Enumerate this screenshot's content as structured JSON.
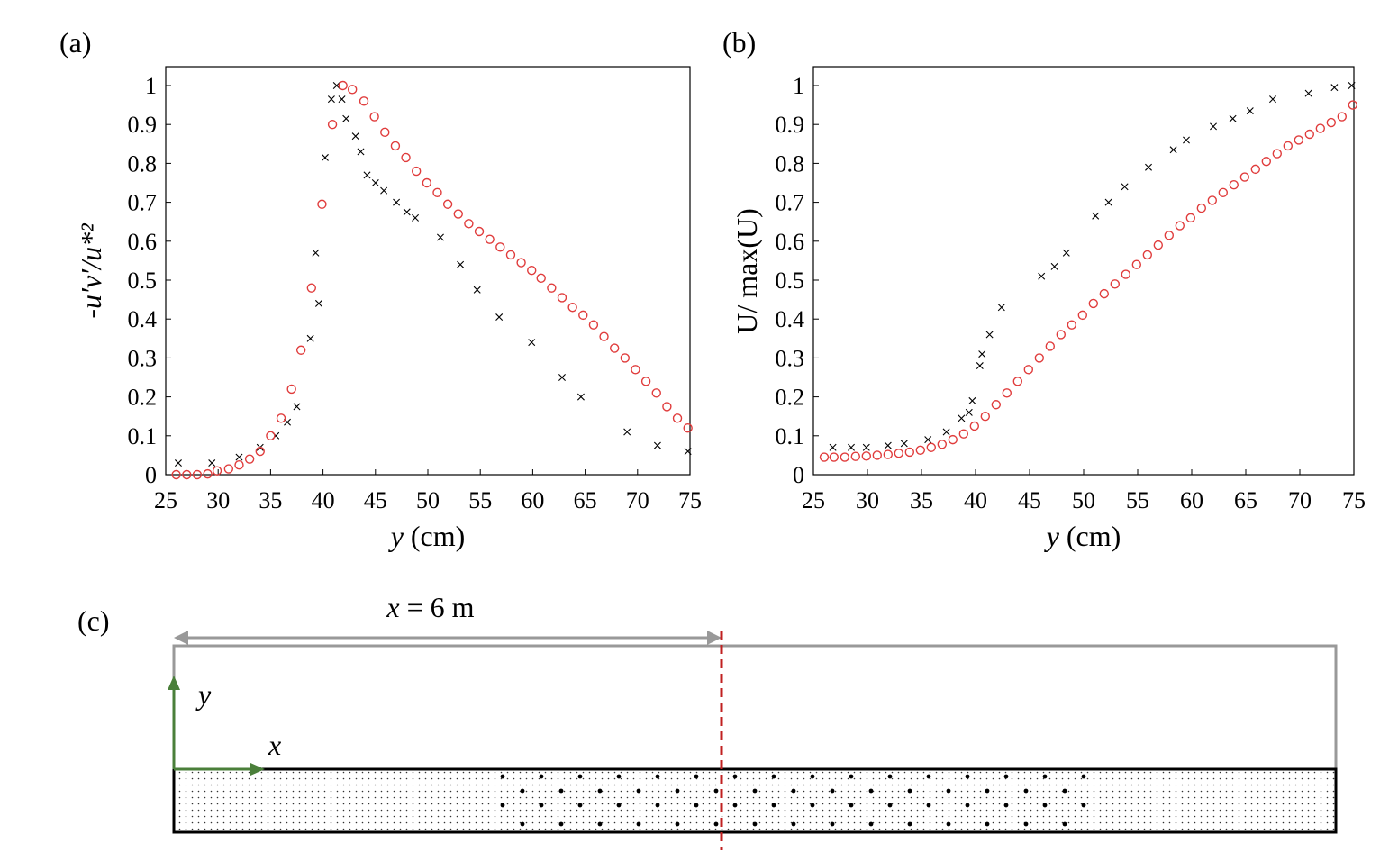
{
  "figure": {
    "panel_a_label": "(a)",
    "panel_b_label": "(b)",
    "panel_c_label": "(c)"
  },
  "chart_data": [
    {
      "type": "scatter",
      "panel": "(a)",
      "xlabel_var": "y",
      "xlabel_unit": "(cm)",
      "ylabel": "-u′v′/u*²",
      "xlim": [
        25,
        75
      ],
      "ylim": [
        0,
        1
      ],
      "xticks": [
        "25",
        "30",
        "35",
        "40",
        "45",
        "50",
        "55",
        "60",
        "65",
        "70",
        "75"
      ],
      "xtick_values": [
        25,
        30,
        35,
        40,
        45,
        50,
        55,
        60,
        65,
        70,
        75
      ],
      "yticks": [
        "0",
        "0.1",
        "0.2",
        "0.3",
        "0.4",
        "0.5",
        "0.6",
        "0.7",
        "0.8",
        "0.9",
        "1"
      ],
      "ytick_values": [
        0,
        0.1,
        0.2,
        0.3,
        0.4,
        0.5,
        0.6,
        0.7,
        0.8,
        0.9,
        1
      ],
      "series": [
        {
          "name": "cross",
          "marker": "x",
          "color": "#000000",
          "x": [
            26.2,
            29.4,
            32.0,
            34.0,
            35.5,
            36.6,
            37.5,
            38.8,
            39.3,
            39.6,
            40.2,
            40.8,
            41.3,
            41.8,
            42.2,
            43.1,
            43.6,
            44.2,
            45.0,
            45.8,
            47.0,
            48.0,
            48.8,
            51.2,
            53.1,
            54.7,
            56.8,
            59.9,
            62.8,
            64.6,
            69.0,
            71.9,
            74.8
          ],
          "y": [
            0.03,
            0.03,
            0.045,
            0.07,
            0.1,
            0.135,
            0.175,
            0.35,
            0.57,
            0.44,
            0.815,
            0.965,
            1.0,
            0.965,
            0.915,
            0.87,
            0.83,
            0.77,
            0.75,
            0.73,
            0.7,
            0.675,
            0.66,
            0.61,
            0.54,
            0.475,
            0.405,
            0.34,
            0.25,
            0.2,
            0.11,
            0.075,
            0.06
          ]
        },
        {
          "name": "circle",
          "marker": "o",
          "color": "#e03c3c",
          "x": [
            26.0,
            27.0,
            28.0,
            29.0,
            29.9,
            31.0,
            32.0,
            33.0,
            34.0,
            35.0,
            36.0,
            37.0,
            37.9,
            38.9,
            39.9,
            40.9,
            41.9,
            42.8,
            43.9,
            44.9,
            45.9,
            46.9,
            47.9,
            48.9,
            49.9,
            50.9,
            51.9,
            52.9,
            53.9,
            54.9,
            55.9,
            56.9,
            57.9,
            58.9,
            59.9,
            60.8,
            61.8,
            62.8,
            63.8,
            64.8,
            65.8,
            66.8,
            67.8,
            68.8,
            69.8,
            70.8,
            71.8,
            72.8,
            73.8,
            74.8
          ],
          "y": [
            0.0,
            0.0,
            0.0,
            0.002,
            0.01,
            0.015,
            0.025,
            0.04,
            0.06,
            0.1,
            0.145,
            0.22,
            0.32,
            0.48,
            0.695,
            0.9,
            1.0,
            0.99,
            0.96,
            0.92,
            0.88,
            0.845,
            0.815,
            0.78,
            0.75,
            0.725,
            0.695,
            0.67,
            0.645,
            0.625,
            0.605,
            0.585,
            0.565,
            0.545,
            0.525,
            0.505,
            0.48,
            0.455,
            0.43,
            0.41,
            0.385,
            0.355,
            0.325,
            0.3,
            0.27,
            0.24,
            0.21,
            0.175,
            0.145,
            0.12
          ]
        }
      ]
    },
    {
      "type": "scatter",
      "panel": "(b)",
      "xlabel_var": "y",
      "xlabel_unit": "(cm)",
      "ylabel": "U/ max(U)",
      "xlim": [
        25,
        75
      ],
      "ylim": [
        0,
        1
      ],
      "xticks": [
        "25",
        "30",
        "35",
        "40",
        "45",
        "50",
        "55",
        "60",
        "65",
        "70",
        "75"
      ],
      "xtick_values": [
        25,
        30,
        35,
        40,
        45,
        50,
        55,
        60,
        65,
        70,
        75
      ],
      "yticks": [
        "0",
        "0.1",
        "0.2",
        "0.3",
        "0.4",
        "0.5",
        "0.6",
        "0.7",
        "0.8",
        "0.9",
        "1"
      ],
      "ytick_values": [
        0,
        0.1,
        0.2,
        0.3,
        0.4,
        0.5,
        0.6,
        0.7,
        0.8,
        0.9,
        1
      ],
      "series": [
        {
          "name": "cross",
          "marker": "x",
          "color": "#000000",
          "x": [
            26.8,
            28.5,
            29.9,
            31.9,
            33.4,
            35.6,
            37.3,
            38.7,
            39.4,
            39.7,
            40.4,
            40.6,
            41.3,
            42.4,
            46.1,
            47.3,
            48.4,
            51.1,
            52.3,
            53.8,
            56.0,
            58.3,
            59.5,
            62.0,
            63.8,
            65.4,
            67.5,
            70.8,
            73.2,
            74.8
          ],
          "y": [
            0.07,
            0.07,
            0.07,
            0.075,
            0.08,
            0.09,
            0.11,
            0.145,
            0.16,
            0.19,
            0.28,
            0.31,
            0.36,
            0.43,
            0.51,
            0.535,
            0.57,
            0.665,
            0.7,
            0.74,
            0.79,
            0.835,
            0.86,
            0.895,
            0.915,
            0.935,
            0.965,
            0.98,
            0.995,
            1.0
          ]
        },
        {
          "name": "circle",
          "marker": "o",
          "color": "#e03c3c",
          "x": [
            26.0,
            26.9,
            27.9,
            28.9,
            29.9,
            30.9,
            31.9,
            32.9,
            33.9,
            34.9,
            35.9,
            36.9,
            37.9,
            38.9,
            39.9,
            40.9,
            41.9,
            42.9,
            43.9,
            44.9,
            45.9,
            46.9,
            47.9,
            48.9,
            49.9,
            50.9,
            51.9,
            52.9,
            53.9,
            54.9,
            55.9,
            56.9,
            57.9,
            58.9,
            59.9,
            60.9,
            61.9,
            62.9,
            63.9,
            64.9,
            65.9,
            66.9,
            67.9,
            68.9,
            69.9,
            70.9,
            71.9,
            72.9,
            73.9,
            74.9
          ],
          "y": [
            0.045,
            0.045,
            0.045,
            0.047,
            0.048,
            0.05,
            0.052,
            0.055,
            0.058,
            0.063,
            0.07,
            0.078,
            0.09,
            0.105,
            0.125,
            0.15,
            0.18,
            0.21,
            0.24,
            0.27,
            0.3,
            0.33,
            0.36,
            0.385,
            0.41,
            0.44,
            0.465,
            0.49,
            0.515,
            0.54,
            0.565,
            0.59,
            0.615,
            0.64,
            0.66,
            0.685,
            0.705,
            0.725,
            0.745,
            0.765,
            0.785,
            0.805,
            0.825,
            0.845,
            0.86,
            0.875,
            0.89,
            0.905,
            0.92,
            0.95
          ]
        }
      ]
    }
  ],
  "schematic": {
    "distance_label_var": "x",
    "distance_label_value": "= 6 m",
    "axis_y_label": "y",
    "axis_x_label": "x",
    "outline_color": "#999999",
    "arrow_color": "#999999",
    "axes_color": "#4a7f3a",
    "marker_line_color": "#c02020",
    "band_color": "#000000"
  }
}
